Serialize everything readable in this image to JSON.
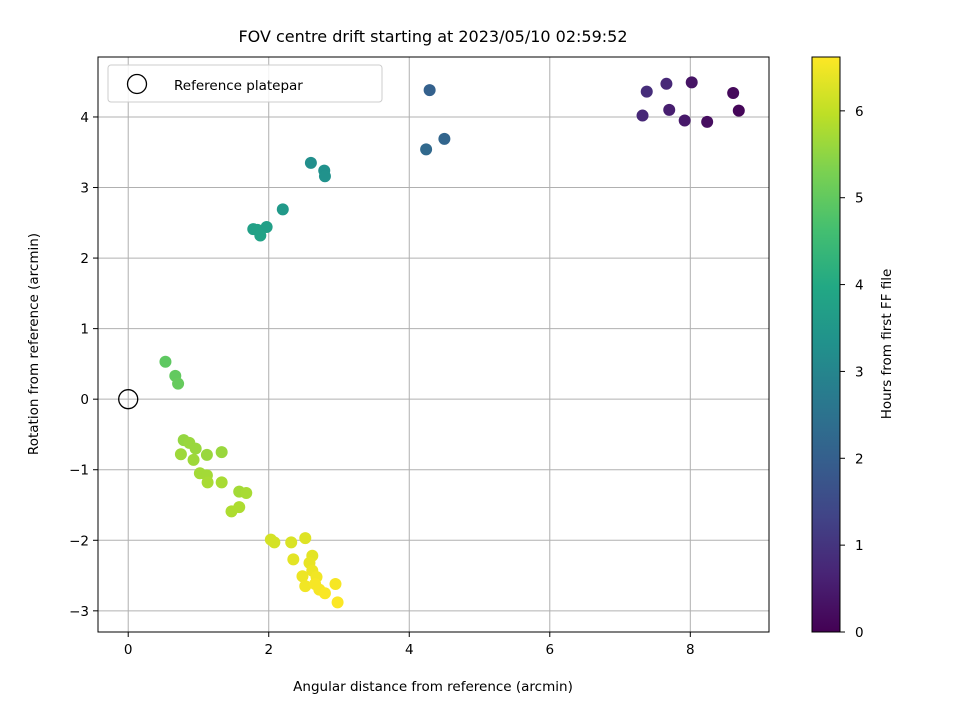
{
  "chart_data": {
    "type": "scatter",
    "title": "FOV centre drift starting at 2023/05/10 02:59:52",
    "xlabel": "Angular distance from reference (arcmin)",
    "ylabel": "Rotation from reference (arcmin)",
    "xlim": [
      -0.43,
      9.12
    ],
    "ylim": [
      -3.3,
      4.85
    ],
    "xticks": [
      0,
      2,
      4,
      6,
      8
    ],
    "yticks": [
      -3,
      -2,
      -1,
      0,
      1,
      2,
      3,
      4
    ],
    "grid": true,
    "legend": {
      "placement": "top-left",
      "entries": [
        "Reference platepar"
      ]
    },
    "reference_point": {
      "x": 0,
      "y": 0
    },
    "colorbar": {
      "label": "Hours from first FF file",
      "min": 0,
      "max": 6.62,
      "ticks": [
        0,
        1,
        2,
        3,
        4,
        5,
        6
      ],
      "colormap": "viridis"
    },
    "points": [
      {
        "x": 7.32,
        "y": 4.02,
        "c": 0.75
      },
      {
        "x": 7.38,
        "y": 4.36,
        "c": 0.85
      },
      {
        "x": 7.66,
        "y": 4.47,
        "c": 0.75
      },
      {
        "x": 7.7,
        "y": 4.1,
        "c": 0.55
      },
      {
        "x": 7.92,
        "y": 3.95,
        "c": 0.45
      },
      {
        "x": 8.02,
        "y": 4.49,
        "c": 0.35
      },
      {
        "x": 8.24,
        "y": 3.93,
        "c": 0.25
      },
      {
        "x": 8.61,
        "y": 4.34,
        "c": 0.15
      },
      {
        "x": 8.69,
        "y": 4.09,
        "c": 0.1
      },
      {
        "x": 4.29,
        "y": 4.38,
        "c": 2.05
      },
      {
        "x": 4.24,
        "y": 3.54,
        "c": 2.25
      },
      {
        "x": 4.5,
        "y": 3.69,
        "c": 2.15
      },
      {
        "x": 2.6,
        "y": 3.35,
        "c": 3.25
      },
      {
        "x": 2.79,
        "y": 3.24,
        "c": 3.3
      },
      {
        "x": 2.8,
        "y": 3.16,
        "c": 3.35
      },
      {
        "x": 2.2,
        "y": 2.69,
        "c": 3.55
      },
      {
        "x": 1.78,
        "y": 2.41,
        "c": 3.75
      },
      {
        "x": 1.84,
        "y": 2.4,
        "c": 3.78
      },
      {
        "x": 1.97,
        "y": 2.44,
        "c": 3.7
      },
      {
        "x": 1.88,
        "y": 2.32,
        "c": 3.8
      },
      {
        "x": 0.53,
        "y": 0.53,
        "c": 4.95
      },
      {
        "x": 0.67,
        "y": 0.33,
        "c": 5.0
      },
      {
        "x": 0.71,
        "y": 0.22,
        "c": 5.05
      },
      {
        "x": 0.79,
        "y": -0.58,
        "c": 5.55
      },
      {
        "x": 0.87,
        "y": -0.62,
        "c": 5.6
      },
      {
        "x": 0.96,
        "y": -0.7,
        "c": 5.6
      },
      {
        "x": 0.75,
        "y": -0.78,
        "c": 5.65
      },
      {
        "x": 0.93,
        "y": -0.86,
        "c": 5.65
      },
      {
        "x": 1.12,
        "y": -0.79,
        "c": 5.6
      },
      {
        "x": 1.33,
        "y": -0.75,
        "c": 5.6
      },
      {
        "x": 1.02,
        "y": -1.05,
        "c": 5.7
      },
      {
        "x": 1.12,
        "y": -1.08,
        "c": 5.7
      },
      {
        "x": 1.13,
        "y": -1.18,
        "c": 5.75
      },
      {
        "x": 1.33,
        "y": -1.18,
        "c": 5.75
      },
      {
        "x": 1.58,
        "y": -1.31,
        "c": 5.7
      },
      {
        "x": 1.68,
        "y": -1.33,
        "c": 5.75
      },
      {
        "x": 1.58,
        "y": -1.53,
        "c": 5.8
      },
      {
        "x": 1.47,
        "y": -1.59,
        "c": 5.8
      },
      {
        "x": 2.03,
        "y": -1.99,
        "c": 6.2
      },
      {
        "x": 2.08,
        "y": -2.03,
        "c": 6.2
      },
      {
        "x": 2.32,
        "y": -2.03,
        "c": 6.25
      },
      {
        "x": 2.52,
        "y": -1.97,
        "c": 6.3
      },
      {
        "x": 2.35,
        "y": -2.27,
        "c": 6.35
      },
      {
        "x": 2.62,
        "y": -2.22,
        "c": 6.35
      },
      {
        "x": 2.58,
        "y": -2.32,
        "c": 6.4
      },
      {
        "x": 2.62,
        "y": -2.43,
        "c": 6.45
      },
      {
        "x": 2.48,
        "y": -2.51,
        "c": 6.45
      },
      {
        "x": 2.68,
        "y": -2.52,
        "c": 6.5
      },
      {
        "x": 2.52,
        "y": -2.65,
        "c": 6.5
      },
      {
        "x": 2.66,
        "y": -2.62,
        "c": 6.55
      },
      {
        "x": 2.72,
        "y": -2.7,
        "c": 6.55
      },
      {
        "x": 2.8,
        "y": -2.75,
        "c": 6.58
      },
      {
        "x": 2.95,
        "y": -2.62,
        "c": 6.55
      },
      {
        "x": 2.98,
        "y": -2.88,
        "c": 6.6
      }
    ]
  }
}
